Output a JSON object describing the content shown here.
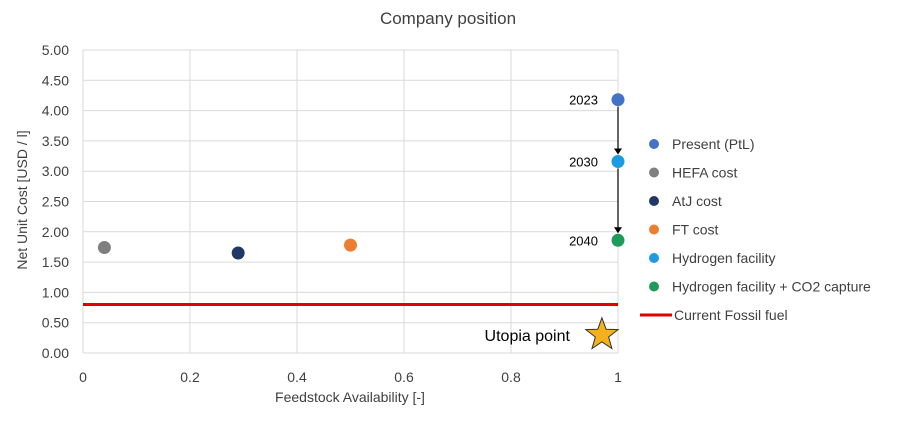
{
  "chart_data": {
    "type": "scatter",
    "title": "Company position",
    "xlabel": "Feedstock Availability [-]",
    "ylabel": "Net Unit Cost [USD / l]",
    "xlim": [
      0,
      1
    ],
    "ylim": [
      0,
      5
    ],
    "x_ticks": [
      {
        "value": 0,
        "label": "0"
      },
      {
        "value": 0.2,
        "label": "0.2"
      },
      {
        "value": 0.4,
        "label": "0.4"
      },
      {
        "value": 0.6,
        "label": "0.6"
      },
      {
        "value": 0.8,
        "label": "0.8"
      },
      {
        "value": 1,
        "label": "1"
      }
    ],
    "y_ticks": [
      {
        "value": 0,
        "label": "0.00"
      },
      {
        "value": 0.5,
        "label": "0.50"
      },
      {
        "value": 1,
        "label": "1.00"
      },
      {
        "value": 1.5,
        "label": "1.50"
      },
      {
        "value": 2,
        "label": "2.00"
      },
      {
        "value": 2.5,
        "label": "2.50"
      },
      {
        "value": 3,
        "label": "3.00"
      },
      {
        "value": 3.5,
        "label": "3.50"
      },
      {
        "value": 4,
        "label": "4.00"
      },
      {
        "value": 4.5,
        "label": "4.50"
      },
      {
        "value": 5,
        "label": "5.00"
      }
    ],
    "grid": true,
    "legend_position": "right",
    "series": [
      {
        "name": "Present (PtL)",
        "color": "#4472C4",
        "marker": "circle",
        "points": [
          {
            "x": 1,
            "y": 4.18
          }
        ]
      },
      {
        "name": "HEFA cost",
        "color": "#7F7F7F",
        "marker": "circle",
        "points": [
          {
            "x": 0.04,
            "y": 1.74
          }
        ]
      },
      {
        "name": "AtJ cost",
        "color": "#203864",
        "marker": "circle",
        "points": [
          {
            "x": 0.29,
            "y": 1.65
          }
        ]
      },
      {
        "name": "FT cost",
        "color": "#ED7D31",
        "marker": "circle",
        "points": [
          {
            "x": 0.5,
            "y": 1.78
          }
        ]
      },
      {
        "name": "Hydrogen facility",
        "color": "#1E9BE0",
        "marker": "circle",
        "points": [
          {
            "x": 1,
            "y": 3.16
          }
        ]
      },
      {
        "name": "Hydrogen facility + CO2 capture",
        "color": "#1E9B5A",
        "marker": "circle",
        "points": [
          {
            "x": 1,
            "y": 1.86
          }
        ]
      },
      {
        "name": "Current Fossil fuel",
        "color": "#E00000",
        "marker": "line",
        "points": [
          {
            "x": 0,
            "y": 0.8
          },
          {
            "x": 1,
            "y": 0.8
          }
        ]
      }
    ],
    "annotations": [
      {
        "text": "2023",
        "x": 1,
        "y": 4.18
      },
      {
        "text": "2030",
        "x": 1,
        "y": 3.16
      },
      {
        "text": "2040",
        "x": 1,
        "y": 1.86
      },
      {
        "text": "Utopia point",
        "x": 0.97,
        "y": 0.3
      }
    ],
    "arrows": [
      {
        "from": {
          "x": 1,
          "y": 4.18
        },
        "to": {
          "x": 1,
          "y": 3.16
        }
      },
      {
        "from": {
          "x": 1,
          "y": 3.16
        },
        "to": {
          "x": 1,
          "y": 1.86
        }
      }
    ],
    "star_marker": {
      "x": 0.97,
      "y": 0.3,
      "color": "#F5B01A"
    }
  }
}
